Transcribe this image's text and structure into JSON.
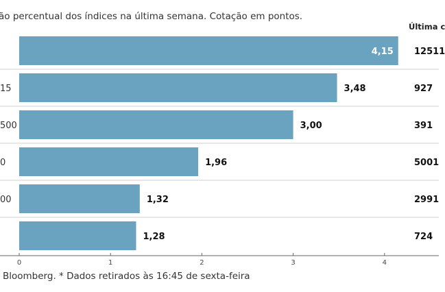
{
  "subtitle": "ão percentual dos índices na última semana. Cotação em pontos.",
  "column_header": "Última c",
  "footer": "Bloomberg.  * Dados retirados às 16:45 de sexta-feira",
  "colors": {
    "bar": "#6aa3bf",
    "bar_label_inside": "#ffffff",
    "bar_label_outside": "#111111",
    "separator": "#cfcfcf",
    "axis": "#666666"
  },
  "chart_data": {
    "type": "bar",
    "orientation": "horizontal",
    "categories": [
      "",
      "15",
      "500",
      "0",
      "00",
      ""
    ],
    "values": [
      4.15,
      3.48,
      3.0,
      1.96,
      1.32,
      1.28
    ],
    "value_labels": [
      "4,15",
      "3,48",
      "3,00",
      "1,96",
      "1,32",
      "1,28"
    ],
    "last_values": [
      "12511",
      "927",
      "391",
      "5001",
      "2991",
      "724"
    ],
    "xlim": [
      0,
      4.5
    ],
    "xticks": [
      0,
      1,
      2,
      3,
      4
    ],
    "xtick_labels": [
      "0",
      "1",
      "2",
      "3",
      "4"
    ],
    "grid": false,
    "legend": "none"
  }
}
